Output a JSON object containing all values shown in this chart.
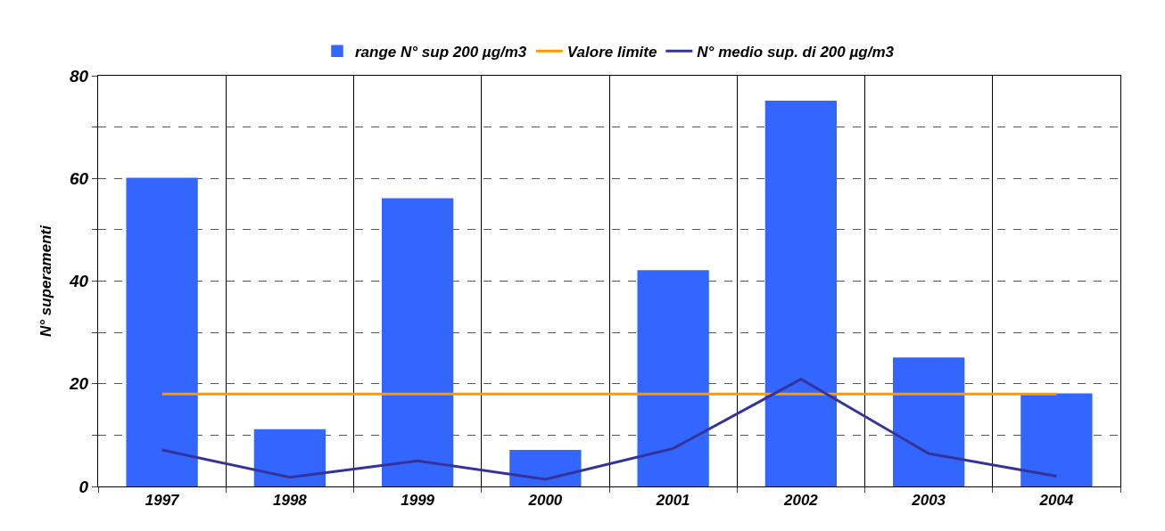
{
  "chart_data": {
    "type": "bar",
    "ylabel": "N° superamenti",
    "categories": [
      "1997",
      "1998",
      "1999",
      "2000",
      "2001",
      "2002",
      "2003",
      "2004"
    ],
    "series": [
      {
        "name": "range N° sup 200 µg/m3",
        "color": "#3366ff",
        "values": [
          60,
          11,
          56,
          7,
          42,
          75,
          25,
          18
        ]
      },
      {
        "name": "Valore limite",
        "type": "line",
        "color": "#ff9900",
        "values": [
          18,
          18,
          18,
          18,
          18,
          18,
          18,
          18
        ]
      },
      {
        "name": "N° medio sup. di 200 µg/m3",
        "type": "line",
        "color": "#333399",
        "values": [
          7.1,
          1.8,
          5,
          1.4,
          7.4,
          20.9,
          6.4,
          2
        ]
      }
    ],
    "ylim": [
      0,
      80
    ],
    "yticks": [
      0,
      {
        "value": 10,
        "label": null
      },
      20,
      {
        "value": 30,
        "label": null
      },
      40,
      {
        "value": 50,
        "label": null
      },
      60,
      {
        "value": 70,
        "label": null
      },
      80
    ],
    "grid": true,
    "legend": "top",
    "marker": "none",
    "line_style": "solid"
  }
}
